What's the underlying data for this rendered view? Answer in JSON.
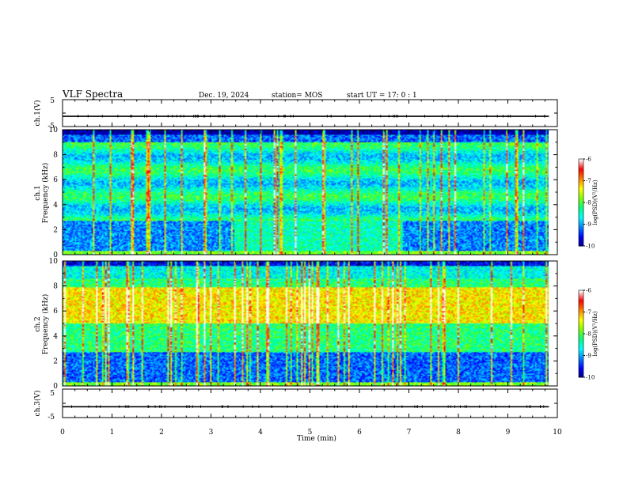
{
  "header": {
    "title": "VLF Spectra",
    "date": "Dec. 19, 2024",
    "station": "station= MOS",
    "start_time": "start  UT =   17: 0  : 1"
  },
  "chart_data": [
    {
      "type": "line",
      "panel": "waveform-ch1",
      "ylabel": "ch.1(V)",
      "ylim": [
        -5,
        5
      ],
      "yticks": [
        "5",
        "-5"
      ],
      "baseline": -1.2,
      "xlim": [
        0,
        10
      ]
    },
    {
      "type": "heatmap",
      "panel": "spectrogram-ch1",
      "ylabel_line1": "ch.1",
      "ylabel_line2": "Frequency (kHz)",
      "xlim": [
        0,
        10
      ],
      "ylim": [
        0,
        10
      ],
      "yticks": [
        "0",
        "2",
        "4",
        "6",
        "8",
        "10"
      ],
      "data_extent_minutes": 9.83,
      "colorbar": {
        "label": "log(PSD)(V²/Hz)",
        "ticks": [
          "-6",
          "-7",
          "-8",
          "-9",
          "-10"
        ],
        "range": [
          -10,
          -6
        ]
      }
    },
    {
      "type": "heatmap",
      "panel": "spectrogram-ch2",
      "ylabel_line1": "ch.2",
      "ylabel_line2": "Frequency (kHz)",
      "xlim": [
        0,
        10
      ],
      "ylim": [
        0,
        10
      ],
      "yticks": [
        "0",
        "2",
        "4",
        "6",
        "8",
        "10"
      ],
      "data_extent_minutes": 9.83,
      "colorbar": {
        "label": "log(PSD)(V²/Hz)",
        "ticks": [
          "-6",
          "-7",
          "-8",
          "-9",
          "-10"
        ],
        "range": [
          -10,
          -6
        ]
      }
    },
    {
      "type": "line",
      "panel": "waveform-ch3",
      "ylabel": "ch.3(V)",
      "ylim": [
        -5,
        5
      ],
      "yticks": [
        "5",
        "-5"
      ],
      "baseline": -1.2,
      "xlim": [
        0,
        10
      ],
      "xlabel": "Time  (min)",
      "xticks": [
        "0",
        "1",
        "2",
        "3",
        "4",
        "5",
        "6",
        "7",
        "8",
        "9",
        "10"
      ]
    }
  ],
  "colors": {
    "colormap": [
      "#000080",
      "#0000ff",
      "#0080ff",
      "#00ffff",
      "#00ff80",
      "#80ff00",
      "#ffff00",
      "#ff8000",
      "#ff0000",
      "#ffffff"
    ],
    "axis": "#000000"
  }
}
